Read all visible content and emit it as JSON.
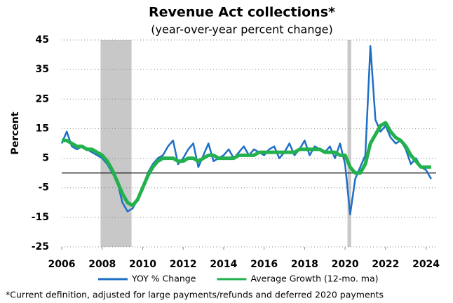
{
  "chart_data": {
    "type": "line",
    "title": "Revenue Act collections*",
    "subtitle": "(year-over-year percent change)",
    "y_label": "Percent",
    "footnote": "*Current definition, adjusted for large payments/refunds and deferred 2020 payments",
    "x": [
      2006,
      2006.25,
      2006.5,
      2006.75,
      2007,
      2007.25,
      2007.5,
      2007.75,
      2008,
      2008.25,
      2008.5,
      2008.75,
      2009,
      2009.25,
      2009.5,
      2009.75,
      2010,
      2010.25,
      2010.5,
      2010.75,
      2011,
      2011.25,
      2011.5,
      2011.75,
      2012,
      2012.25,
      2012.5,
      2012.75,
      2013,
      2013.25,
      2013.5,
      2013.75,
      2014,
      2014.25,
      2014.5,
      2014.75,
      2015,
      2015.25,
      2015.5,
      2015.75,
      2016,
      2016.25,
      2016.5,
      2016.75,
      2017,
      2017.25,
      2017.5,
      2017.75,
      2018,
      2018.25,
      2018.5,
      2018.75,
      2019,
      2019.25,
      2019.5,
      2019.75,
      2020,
      2020.25,
      2020.5,
      2020.75,
      2021,
      2021.25,
      2021.5,
      2021.75,
      2022,
      2022.25,
      2022.5,
      2022.75,
      2023,
      2023.25,
      2023.5,
      2023.75,
      2024,
      2024.25
    ],
    "series": [
      {
        "name": "YOY % Change",
        "color": "#1f6fc5",
        "width": 2.5,
        "values": [
          10,
          14,
          9,
          8,
          9,
          8,
          7,
          6,
          5,
          3,
          0,
          -3,
          -10,
          -13,
          -12,
          -9,
          -5,
          0,
          3,
          5,
          6,
          9,
          11,
          3,
          5,
          8,
          10,
          2,
          6,
          10,
          4,
          5,
          6,
          8,
          5,
          7,
          9,
          6,
          8,
          7,
          6,
          8,
          9,
          5,
          7,
          10,
          6,
          8,
          11,
          6,
          9,
          8,
          7,
          9,
          5,
          10,
          3,
          -14,
          -2,
          2,
          6,
          43,
          18,
          14,
          16,
          12,
          10,
          11,
          8,
          3,
          5,
          2,
          1,
          -2
        ]
      },
      {
        "name": "Average Growth (12-mo. ma)",
        "color": "#22b14c",
        "width": 5,
        "values": [
          11,
          11,
          10,
          9,
          9,
          8,
          8,
          7,
          6,
          4,
          1,
          -3,
          -7,
          -10,
          -11,
          -9,
          -5,
          -1,
          2,
          4,
          5,
          5,
          5,
          4,
          4,
          5,
          5,
          4,
          5,
          6,
          6,
          5,
          5,
          5,
          5,
          6,
          6,
          6,
          6,
          7,
          7,
          7,
          7,
          7,
          7,
          7,
          7,
          8,
          8,
          8,
          8,
          8,
          7,
          7,
          7,
          6,
          6,
          2,
          0,
          0,
          3,
          10,
          13,
          16,
          17,
          14,
          12,
          11,
          9,
          6,
          4,
          2,
          2,
          2
        ]
      }
    ],
    "shaded_periods": [
      [
        2007.92,
        2009.45
      ],
      [
        2020.12,
        2020.3
      ]
    ],
    "shade_color": "#c8c8c8",
    "xlim": [
      2006,
      2024.5
    ],
    "xticks": [
      2006,
      2008,
      2010,
      2012,
      2014,
      2016,
      2018,
      2020,
      2022,
      2024
    ],
    "ylim": [
      -25,
      45
    ],
    "yticks": [
      -25,
      -15,
      -5,
      5,
      15,
      25,
      35,
      45
    ],
    "grid": true,
    "zero_line": true,
    "legend": "bottom"
  }
}
